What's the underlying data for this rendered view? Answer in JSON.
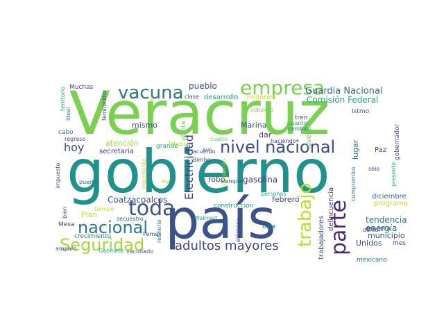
{
  "wordcloud": {
    "words": [
      {
        "text": "Veracruz",
        "color": "#7ad151"
      },
      {
        "text": "gobierno",
        "color": "#21918c"
      },
      {
        "text": "país",
        "color": "#3b528b"
      },
      {
        "text": "nivel nacional",
        "color": "#3e4989"
      },
      {
        "text": "toda",
        "color": "#3b528b"
      },
      {
        "text": "vacuna",
        "color": "#2a788e"
      },
      {
        "text": "empresa",
        "color": "#7ad151"
      },
      {
        "text": "trabajo",
        "color": "#bddf26"
      },
      {
        "text": "parte",
        "color": "#482878"
      },
      {
        "text": "Seguridad",
        "color": "#a2da37"
      },
      {
        "text": "nacional",
        "color": "#2a788e"
      },
      {
        "text": "adultos mayores",
        "color": "#3e4989"
      },
      {
        "text": "Electricidad",
        "color": "#443983"
      },
      {
        "text": "Guardia Nacional",
        "color": "#31688e"
      },
      {
        "text": "Comisión Federal",
        "color": "#22a884"
      },
      {
        "text": "Coatzacoalcos",
        "color": "#3b528b"
      },
      {
        "text": "hoy",
        "color": "#3e4989"
      },
      {
        "text": "pueblo",
        "color": "#3b528b"
      },
      {
        "text": "mismo",
        "color": "#3e4989"
      },
      {
        "text": "tendencia",
        "color": "#2a788e"
      },
      {
        "text": "energía",
        "color": "#31688e"
      },
      {
        "text": "municipio",
        "color": "#3b528b"
      },
      {
        "text": "Unidos",
        "color": "#3b528b"
      },
      {
        "text": "gasolina",
        "color": "#443983"
      },
      {
        "text": "robo",
        "color": "#3e4989"
      },
      {
        "text": "Marina",
        "color": "#3b528b"
      },
      {
        "text": "dar",
        "color": "#443983"
      },
      {
        "text": "desarrollo",
        "color": "#22a884"
      },
      {
        "text": "millones",
        "color": "#bddf26"
      },
      {
        "text": "febrero",
        "color": "#3e4989"
      },
      {
        "text": "atención",
        "color": "#a2da37"
      },
      {
        "text": "secretaria",
        "color": "#443983"
      },
      {
        "text": "Plan",
        "color": "#bddf26"
      },
      {
        "text": "diciembre",
        "color": "#31688e"
      },
      {
        "text": "programa",
        "color": "#bddf26"
      },
      {
        "text": "Paz",
        "color": "#3e4989"
      },
      {
        "text": "mes",
        "color": "#3e4989"
      },
      {
        "text": "gobernador",
        "color": "#3e4989"
      },
      {
        "text": "lugar",
        "color": "#2a788e"
      },
      {
        "text": "trabajadores",
        "color": "#3e4989"
      },
      {
        "text": "delincuencia",
        "color": "#482878"
      },
      {
        "text": "jóvenes",
        "color": "#6ece58"
      },
      {
        "text": "compromiso",
        "color": "#2a788e"
      },
      {
        "text": "sólo",
        "color": "#443983"
      },
      {
        "text": "presente",
        "color": "#22a884"
      },
      {
        "text": "manera",
        "color": "#31688e"
      },
      {
        "text": "delito",
        "color": "#3e4989"
      },
      {
        "text": "mexicano",
        "color": "#2a788e"
      },
      {
        "text": "construcción",
        "color": "#21918c"
      },
      {
        "text": "siempre",
        "color": "#3b528b"
      },
      {
        "text": "personas",
        "color": "#22a884"
      },
      {
        "text": "baja",
        "color": "#2a788e"
      },
      {
        "text": "eléctrica",
        "color": "#3e4989"
      },
      {
        "text": "Walmart",
        "color": "#22a884"
      },
      {
        "text": "Pemex",
        "color": "#3b528b"
      },
      {
        "text": "crecimiento",
        "color": "#2a788e"
      },
      {
        "text": "Mesa",
        "color": "#3e4989"
      },
      {
        "text": "bien",
        "color": "#3e4989"
      },
      {
        "text": "amparo",
        "color": "#3b528b"
      },
      {
        "text": "Gabinete",
        "color": "#22a884"
      },
      {
        "text": "vacunado",
        "color": "#3b528b"
      },
      {
        "text": "secuestro",
        "color": "#31688e"
      },
      {
        "text": "refinería",
        "color": "#2a788e"
      },
      {
        "text": "tiempo",
        "color": "#bddf26"
      },
      {
        "text": "puerto",
        "color": "#31688e"
      },
      {
        "text": "impuesto",
        "color": "#3e4989"
      },
      {
        "text": "cabo",
        "color": "#2a788e"
      },
      {
        "text": "regreso",
        "color": "#3e4989"
      },
      {
        "text": "Muchas",
        "color": "#3e4989"
      },
      {
        "text": "territorio",
        "color": "#22a884"
      },
      {
        "text": "ideal",
        "color": "#2a788e"
      },
      {
        "text": "feminicidio",
        "color": "#3e4989"
      },
      {
        "text": "clase",
        "color": "#3e4989"
      },
      {
        "text": "grupo",
        "color": "#a2da37"
      },
      {
        "text": "planta",
        "color": "#6ece58"
      },
      {
        "text": "datos",
        "color": "#6ece58"
      },
      {
        "text": "grande",
        "color": "#22a884"
      },
      {
        "text": "Tabasco",
        "color": "#bddf26"
      },
      {
        "text": "acuerdo",
        "color": "#3b528b"
      },
      {
        "text": "cuatro",
        "color": "#6ece58"
      },
      {
        "text": "sur",
        "color": "#3b528b"
      },
      {
        "text": "Bimbo",
        "color": "#3b528b"
      },
      {
        "text": "población",
        "color": "#bddf26"
      },
      {
        "text": "importante",
        "color": "#bddf26"
      },
      {
        "text": "ley",
        "color": "#bddf26"
      },
      {
        "text": "subsidio",
        "color": "#6ece58"
      },
      {
        "text": "haciendo",
        "color": "#3e4989"
      },
      {
        "text": "tren",
        "color": "#3e4989"
      },
      {
        "text": "cuanto",
        "color": "#22a884"
      },
      {
        "text": "cambio",
        "color": "#2a788e"
      },
      {
        "text": "Istmo",
        "color": "#3b528b"
      }
    ]
  }
}
